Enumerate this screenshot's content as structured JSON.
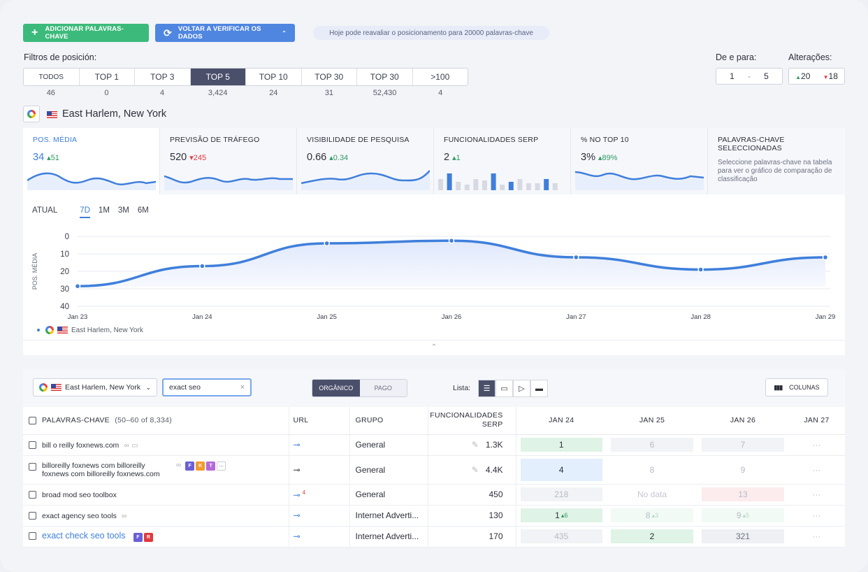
{
  "header": {
    "add_keywords": "ADICIONAR PALAVRAS-CHAVE",
    "recheck": "VOLTAR A VERIFICAR OS DADOS",
    "info": "Hoje pode reavaliar o posicionamento para 20000 palavras-chave"
  },
  "filters": {
    "label": "Filtros de posición:",
    "items": [
      {
        "label": "TODOS",
        "count": "46"
      },
      {
        "label": "TOP 1",
        "count": "0"
      },
      {
        "label": "TOP 3",
        "count": "4"
      },
      {
        "label": "TOP 5",
        "count": "3,424"
      },
      {
        "label": "TOP 10",
        "count": "24"
      },
      {
        "label": "TOP 30",
        "count": "31"
      },
      {
        "label": "TOP 30",
        "count": "52,430"
      },
      {
        "label": ">100",
        "count": "4"
      }
    ],
    "active_index": 3
  },
  "range": {
    "label": "De e para:",
    "from": "1",
    "sep": "-",
    "to": "5"
  },
  "changes": {
    "label": "Alterações:",
    "up": "20",
    "down": "18"
  },
  "location": {
    "name": "East Harlem, New York"
  },
  "cards": [
    {
      "title": "POS. MÉDIA",
      "value": "34",
      "delta": "51",
      "dir": "up"
    },
    {
      "title": "PREVISÃO DE TRÁFEGO",
      "value": "520",
      "delta": "245",
      "dir": "down"
    },
    {
      "title": "VISIBILIDADE DE PESQUISA",
      "value": "0.66",
      "delta": "0.34",
      "dir": "up"
    },
    {
      "title": "FUNCIONALIDADES SERP",
      "value": "2",
      "delta": "1",
      "dir": "up"
    },
    {
      "title": "% NO TOP 10",
      "value": "3%",
      "delta": "89%",
      "dir": "up"
    },
    {
      "title": "PALAVRAS-CHAVE SELECCIONADAS",
      "text": "Seleccione palavras-chave na tabela para ver o gráfico de comparação de classificação"
    }
  ],
  "chart_tabs": {
    "current": "ATUAL",
    "items": [
      "7D",
      "1M",
      "3M",
      "6M"
    ]
  },
  "chart_data": {
    "type": "line",
    "x": [
      "Jan 23",
      "Jan 24",
      "Jan 25",
      "Jan 26",
      "Jan 27",
      "Jan 28",
      "Jan 29"
    ],
    "series": [
      {
        "name": "East Harlem, New York",
        "values": [
          28.5,
          17,
          4,
          2.5,
          12,
          19,
          12
        ]
      }
    ],
    "ylabel": "POS. MÉDIA",
    "ylim": [
      0,
      40
    ],
    "yticks": [
      "0",
      "10",
      "20",
      "30",
      "40"
    ],
    "y_inverted": true,
    "color": "#3f7fdb"
  },
  "toolbar": {
    "location": "East Harlem, New York",
    "search_value": "exact seo",
    "organic": "ORGÂNICO",
    "paid": "PAGO",
    "list_label": "Lista:",
    "columns": "COLUNAS"
  },
  "table": {
    "headers": {
      "keywords": "PALAVRAS-CHAVE",
      "range": "(50–60 of 8,334)",
      "url": "URL",
      "group": "GRUPO",
      "serp": "FUNCIONALIDADES SERP",
      "d1": "JAN 24",
      "d2": "JAN 25",
      "d3": "JAN 26",
      "d4": "JAN 27"
    },
    "rows": [
      {
        "kw": "bill o reilly foxnews.com",
        "group": "General",
        "serp": "1.3K",
        "d1": "1",
        "d2": "6",
        "d3": "7"
      },
      {
        "kw": "billoreilly foxnews com billoreilly foxnews com billoreilly foxnews.com",
        "group": "General",
        "serp": "4.4K",
        "d1": "4",
        "d2": "8",
        "d3": "9"
      },
      {
        "kw": "broad mod seo toolbox",
        "url_badge": "4",
        "group": "General",
        "serp": "450",
        "d1": "218",
        "d2": "No data",
        "d3": "13"
      },
      {
        "kw": "exact agency seo tools",
        "group": "Internet Adverti...",
        "serp": "130",
        "d1": "1",
        "d1b": "6",
        "d2": "8",
        "d2b": "3",
        "d3": "9",
        "d3b": "5"
      },
      {
        "kw": "exact check seo tools",
        "group": "Internet Adverti...",
        "serp": "170",
        "d1": "435",
        "d2": "2",
        "d3": "321"
      }
    ]
  }
}
